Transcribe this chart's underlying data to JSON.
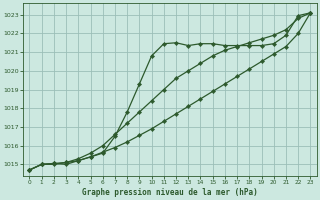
{
  "title": "Graphe pression niveau de la mer (hPa)",
  "bg_color": "#cce8e0",
  "grid_color": "#9bbfb8",
  "line_color": "#2d5a2d",
  "ylim": [
    1014.4,
    1023.6
  ],
  "yticks": [
    1015,
    1016,
    1017,
    1018,
    1019,
    1020,
    1021,
    1022,
    1023
  ],
  "xlim": [
    -0.5,
    23.5
  ],
  "xticks": [
    0,
    1,
    2,
    3,
    4,
    5,
    6,
    7,
    8,
    9,
    10,
    11,
    12,
    13,
    14,
    15,
    16,
    17,
    18,
    19,
    20,
    21,
    22,
    23
  ],
  "series_straight": [
    1014.7,
    1015.0,
    1015.05,
    1015.1,
    1015.2,
    1015.4,
    1015.65,
    1015.9,
    1016.2,
    1016.55,
    1016.9,
    1017.3,
    1017.7,
    1018.1,
    1018.5,
    1018.9,
    1019.3,
    1019.7,
    1020.1,
    1020.5,
    1020.9,
    1021.3,
    1022.0,
    1023.1
  ],
  "series_scurve": [
    1014.7,
    1015.0,
    1015.05,
    1015.0,
    1015.2,
    1015.4,
    1015.6,
    1016.5,
    1017.8,
    1019.3,
    1020.8,
    1021.45,
    1021.5,
    1021.35,
    1021.45,
    1021.45,
    1021.35,
    1021.35,
    1021.35,
    1021.35,
    1021.45,
    1021.9,
    1022.95,
    1023.1
  ],
  "series_mid": [
    1014.7,
    1015.0,
    1015.0,
    1015.1,
    1015.3,
    1015.6,
    1016.0,
    1016.6,
    1017.2,
    1017.8,
    1018.4,
    1019.0,
    1019.6,
    1020.0,
    1020.4,
    1020.8,
    1021.1,
    1021.3,
    1021.5,
    1021.7,
    1021.9,
    1022.2,
    1022.8,
    1023.1
  ]
}
